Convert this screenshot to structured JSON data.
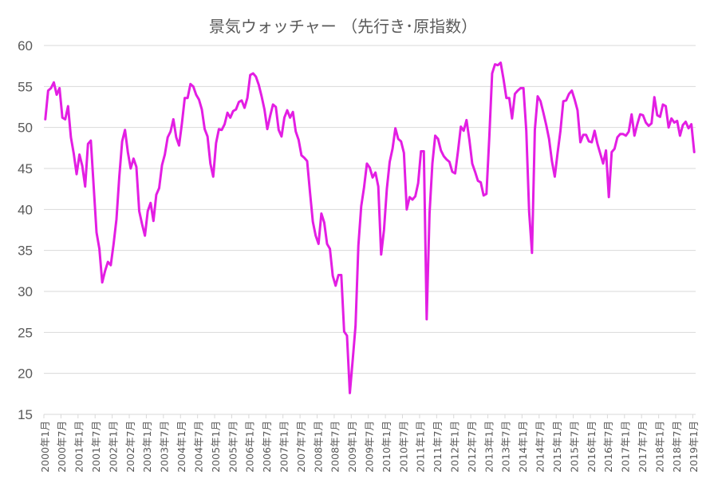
{
  "chart_data": {
    "type": "line",
    "title": "景気ウォッチャー （先行き･原指数）",
    "xlabel": "",
    "ylabel": "",
    "ylim": [
      15,
      60
    ],
    "yticks": [
      15,
      20,
      25,
      30,
      35,
      40,
      45,
      50,
      55,
      60
    ],
    "grid": true,
    "legend": "none",
    "line_color": "#e31ee3",
    "x_tick_labels": [
      "2000年1月",
      "2000年7月",
      "2001年1月",
      "2001年7月",
      "2002年1月",
      "2002年7月",
      "2003年1月",
      "2003年7月",
      "2004年1月",
      "2004年7月",
      "2005年1月",
      "2005年7月",
      "2006年1月",
      "2006年7月",
      "2007年1月",
      "2007年7月",
      "2008年1月",
      "2008年7月",
      "2009年1月",
      "2009年7月",
      "2010年1月",
      "2010年7月",
      "2011年1月",
      "2011年7月",
      "2012年1月",
      "2012年7月",
      "2013年1月",
      "2013年7月",
      "2014年1月",
      "2014年7月",
      "2015年1月",
      "2015年7月",
      "2016年1月",
      "2016年7月",
      "2017年1月",
      "2017年7月",
      "2018年1月",
      "2018年7月",
      "2019年1月"
    ],
    "x_start": "2000-01",
    "series": [
      {
        "name": "",
        "values": [
          51.0,
          54.5,
          54.8,
          55.5,
          54.0,
          54.8,
          51.2,
          51.0,
          52.6,
          48.8,
          46.8,
          44.3,
          46.7,
          45.3,
          42.8,
          48.0,
          48.4,
          42.8,
          37.2,
          35.2,
          31.1,
          32.5,
          33.6,
          33.2,
          35.8,
          38.8,
          44.0,
          48.3,
          49.7,
          47.0,
          45.0,
          46.2,
          45.2,
          39.8,
          38.2,
          36.8,
          39.8,
          40.8,
          38.6,
          41.8,
          42.6,
          45.4,
          46.7,
          48.8,
          49.5,
          51.0,
          48.8,
          47.8,
          50.5,
          53.6,
          53.6,
          55.3,
          55.0,
          54.0,
          53.4,
          52.2,
          49.8,
          48.9,
          45.6,
          44.0,
          48.1,
          49.8,
          49.7,
          50.4,
          51.8,
          51.2,
          52.0,
          52.2,
          53.1,
          53.3,
          52.4,
          53.6,
          56.4,
          56.6,
          56.2,
          55.2,
          53.8,
          52.2,
          49.8,
          51.4,
          52.8,
          52.5,
          49.7,
          48.9,
          51.2,
          52.1,
          51.2,
          51.9,
          49.5,
          48.5,
          46.6,
          46.3,
          45.9,
          42.1,
          38.5,
          36.8,
          35.8,
          39.5,
          38.4,
          35.8,
          35.2,
          31.9,
          30.7,
          32.0,
          32.0,
          25.1,
          24.6,
          17.6,
          21.6,
          25.8,
          35.6,
          40.4,
          42.7,
          45.6,
          45.1,
          43.9,
          44.5,
          42.8,
          34.5,
          37.5,
          42.5,
          45.8,
          47.4,
          49.9,
          48.6,
          48.3,
          46.9,
          40.0,
          41.5,
          41.2,
          41.6,
          43.2,
          47.1,
          47.1,
          26.6,
          39.5,
          45.6,
          49.0,
          48.6,
          47.2,
          46.5,
          46.1,
          45.8,
          44.6,
          44.4,
          47.1,
          50.1,
          49.6,
          50.9,
          48.5,
          45.6,
          44.6,
          43.5,
          43.3,
          41.7,
          41.9,
          48.8,
          56.6,
          57.7,
          57.6,
          57.9,
          55.9,
          53.6,
          53.6,
          51.1,
          54.1,
          54.5,
          54.8,
          54.8,
          49.6,
          39.7,
          34.7,
          49.7,
          53.8,
          53.2,
          51.8,
          50.3,
          48.6,
          45.9,
          44.0,
          46.9,
          49.6,
          53.2,
          53.3,
          54.1,
          54.5,
          53.4,
          52.1,
          48.2,
          49.1,
          49.1,
          48.3,
          48.2,
          49.6,
          48.0,
          46.8,
          45.6,
          47.2,
          41.5,
          47.0,
          47.4,
          48.8,
          49.2,
          49.2,
          49.0,
          49.5,
          51.6,
          49.0,
          50.4,
          51.6,
          51.5,
          50.6,
          50.2,
          50.5,
          53.7,
          51.5,
          51.3,
          52.8,
          52.6,
          50.0,
          51.1,
          50.6,
          50.8,
          49.0,
          50.3,
          50.7,
          49.9,
          50.4,
          47.0
        ]
      }
    ]
  }
}
